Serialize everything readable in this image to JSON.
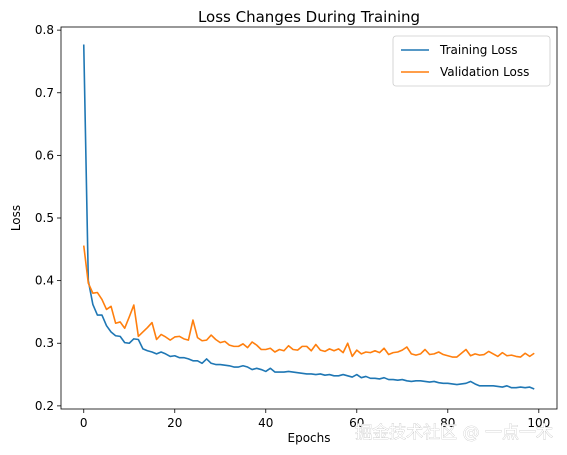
{
  "chart_data": {
    "type": "line",
    "title": "Loss Changes During Training",
    "xlabel": "Epochs",
    "ylabel": "Loss",
    "xlim": [
      -5,
      104
    ],
    "ylim": [
      0.195,
      0.805
    ],
    "xticks": [
      0,
      20,
      40,
      60,
      80,
      100
    ],
    "yticks": [
      0.2,
      0.3,
      0.4,
      0.5,
      0.6,
      0.7,
      0.8
    ],
    "grid": false,
    "legend_position": "top-right",
    "series": [
      {
        "name": "Training Loss",
        "color": "#1f77b4",
        "x": [
          0,
          1,
          2,
          3,
          4,
          5,
          6,
          7,
          8,
          9,
          10,
          11,
          12,
          13,
          14,
          15,
          16,
          17,
          18,
          19,
          20,
          21,
          22,
          23,
          24,
          25,
          26,
          27,
          28,
          29,
          30,
          31,
          32,
          33,
          34,
          35,
          36,
          37,
          38,
          39,
          40,
          41,
          42,
          43,
          44,
          45,
          46,
          47,
          48,
          49,
          50,
          51,
          52,
          53,
          54,
          55,
          56,
          57,
          58,
          59,
          60,
          61,
          62,
          63,
          64,
          65,
          66,
          67,
          68,
          69,
          70,
          71,
          72,
          73,
          74,
          75,
          76,
          77,
          78,
          79,
          80,
          81,
          82,
          83,
          84,
          85,
          86,
          87,
          88,
          89,
          90,
          91,
          92,
          93,
          94,
          95,
          96,
          97,
          98,
          99
        ],
        "y": [
          0.777,
          0.4,
          0.362,
          0.345,
          0.345,
          0.328,
          0.318,
          0.312,
          0.311,
          0.301,
          0.3,
          0.307,
          0.306,
          0.291,
          0.288,
          0.286,
          0.283,
          0.286,
          0.283,
          0.279,
          0.28,
          0.277,
          0.277,
          0.275,
          0.272,
          0.272,
          0.268,
          0.275,
          0.268,
          0.266,
          0.266,
          0.265,
          0.264,
          0.262,
          0.262,
          0.264,
          0.262,
          0.258,
          0.26,
          0.258,
          0.255,
          0.26,
          0.254,
          0.254,
          0.254,
          0.255,
          0.254,
          0.253,
          0.252,
          0.251,
          0.251,
          0.25,
          0.251,
          0.249,
          0.25,
          0.248,
          0.248,
          0.25,
          0.248,
          0.246,
          0.25,
          0.245,
          0.247,
          0.244,
          0.244,
          0.243,
          0.245,
          0.242,
          0.242,
          0.241,
          0.242,
          0.24,
          0.239,
          0.24,
          0.24,
          0.239,
          0.238,
          0.239,
          0.237,
          0.236,
          0.236,
          0.235,
          0.234,
          0.235,
          0.236,
          0.239,
          0.235,
          0.232,
          0.232,
          0.232,
          0.232,
          0.231,
          0.23,
          0.232,
          0.229,
          0.229,
          0.23,
          0.229,
          0.23,
          0.227
        ]
      },
      {
        "name": "Validation Loss",
        "color": "#ff7f0e",
        "x": [
          0,
          1,
          2,
          3,
          4,
          5,
          6,
          7,
          8,
          9,
          10,
          11,
          12,
          13,
          14,
          15,
          16,
          17,
          18,
          19,
          20,
          21,
          22,
          23,
          24,
          25,
          26,
          27,
          28,
          29,
          30,
          31,
          32,
          33,
          34,
          35,
          36,
          37,
          38,
          39,
          40,
          41,
          42,
          43,
          44,
          45,
          46,
          47,
          48,
          49,
          50,
          51,
          52,
          53,
          54,
          55,
          56,
          57,
          58,
          59,
          60,
          61,
          62,
          63,
          64,
          65,
          66,
          67,
          68,
          69,
          70,
          71,
          72,
          73,
          74,
          75,
          76,
          77,
          78,
          79,
          80,
          81,
          82,
          83,
          84,
          85,
          86,
          87,
          88,
          89,
          90,
          91,
          92,
          93,
          94,
          95,
          96,
          97,
          98,
          99
        ],
        "y": [
          0.456,
          0.396,
          0.38,
          0.381,
          0.37,
          0.354,
          0.359,
          0.332,
          0.334,
          0.324,
          0.342,
          0.361,
          0.311,
          0.318,
          0.325,
          0.333,
          0.306,
          0.314,
          0.31,
          0.305,
          0.31,
          0.311,
          0.307,
          0.305,
          0.337,
          0.309,
          0.304,
          0.305,
          0.313,
          0.306,
          0.301,
          0.303,
          0.297,
          0.295,
          0.295,
          0.299,
          0.293,
          0.302,
          0.297,
          0.29,
          0.29,
          0.292,
          0.286,
          0.29,
          0.288,
          0.296,
          0.29,
          0.289,
          0.295,
          0.295,
          0.288,
          0.298,
          0.289,
          0.287,
          0.291,
          0.288,
          0.291,
          0.285,
          0.3,
          0.279,
          0.289,
          0.283,
          0.286,
          0.285,
          0.288,
          0.285,
          0.292,
          0.282,
          0.285,
          0.286,
          0.289,
          0.294,
          0.283,
          0.281,
          0.283,
          0.29,
          0.282,
          0.283,
          0.286,
          0.282,
          0.28,
          0.278,
          0.278,
          0.284,
          0.29,
          0.28,
          0.283,
          0.281,
          0.282,
          0.287,
          0.283,
          0.279,
          0.285,
          0.28,
          0.281,
          0.279,
          0.278,
          0.284,
          0.279,
          0.284
        ]
      }
    ]
  },
  "watermark": "掘金技术社区 @ 一点一木"
}
